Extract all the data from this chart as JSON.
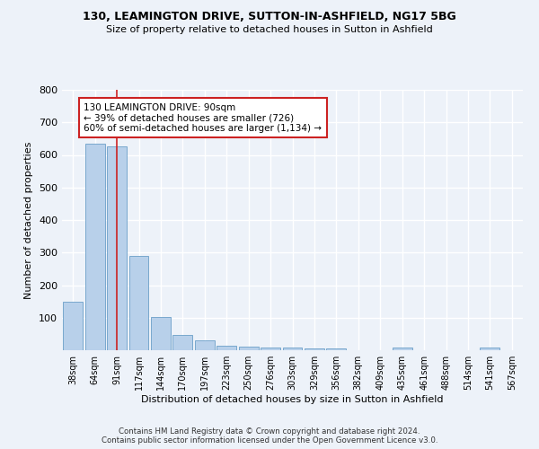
{
  "title1": "130, LEAMINGTON DRIVE, SUTTON-IN-ASHFIELD, NG17 5BG",
  "title2": "Size of property relative to detached houses in Sutton in Ashfield",
  "xlabel": "Distribution of detached houses by size in Sutton in Ashfield",
  "ylabel": "Number of detached properties",
  "categories": [
    "38sqm",
    "64sqm",
    "91sqm",
    "117sqm",
    "144sqm",
    "170sqm",
    "197sqm",
    "223sqm",
    "250sqm",
    "276sqm",
    "303sqm",
    "329sqm",
    "356sqm",
    "382sqm",
    "409sqm",
    "435sqm",
    "461sqm",
    "488sqm",
    "514sqm",
    "541sqm",
    "567sqm"
  ],
  "values": [
    150,
    635,
    625,
    290,
    103,
    46,
    30,
    13,
    10,
    8,
    8,
    6,
    5,
    0,
    0,
    8,
    0,
    0,
    0,
    8,
    0
  ],
  "bar_color": "#b8d0ea",
  "bar_edge_color": "#6a9fc8",
  "highlight_bar_index": 2,
  "highlight_line_color": "#cc2222",
  "annotation_text": "130 LEAMINGTON DRIVE: 90sqm\n← 39% of detached houses are smaller (726)\n60% of semi-detached houses are larger (1,134) →",
  "annotation_box_color": "#ffffff",
  "annotation_box_edge": "#cc2222",
  "ylim": [
    0,
    800
  ],
  "yticks": [
    0,
    100,
    200,
    300,
    400,
    500,
    600,
    700,
    800
  ],
  "background_color": "#edf2f9",
  "grid_color": "#ffffff",
  "footer": "Contains HM Land Registry data © Crown copyright and database right 2024.\nContains public sector information licensed under the Open Government Licence v3.0."
}
